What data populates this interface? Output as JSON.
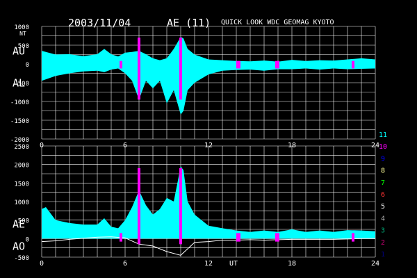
{
  "header": {
    "date": "2003/11/04",
    "index": "AE (11)",
    "source": "QUICK LOOK  WDC GEOMAG KYOTO"
  },
  "colors": {
    "background": "#000000",
    "grid": "#ffffff",
    "ae_fill": "#00ffff",
    "ao_line": "#ffffff",
    "highlight": "#ff00ff"
  },
  "chart_data": [
    {
      "type": "area",
      "panel": "top",
      "ylabel_upper": "AU",
      "ylabel_lower": "AL",
      "unit": "NT",
      "ylim": [
        -2000,
        1000
      ],
      "yticks": [
        1000,
        500,
        0,
        -500,
        -1000,
        -1500,
        -2000
      ],
      "xlim": [
        0,
        24
      ],
      "xticks": [
        0,
        6,
        12,
        18,
        24
      ],
      "au": {
        "x": [
          0,
          1,
          2,
          3,
          4,
          4.5,
          5,
          5.5,
          6,
          6.5,
          7,
          7.5,
          8,
          8.5,
          9,
          9.5,
          10,
          10.2,
          10.5,
          11,
          12,
          13,
          14,
          15,
          16,
          17,
          18,
          19,
          20,
          21,
          22,
          23,
          24
        ],
        "y": [
          350,
          250,
          260,
          210,
          260,
          400,
          260,
          200,
          300,
          320,
          350,
          260,
          150,
          100,
          150,
          400,
          720,
          680,
          400,
          250,
          120,
          100,
          80,
          70,
          90,
          60,
          110,
          80,
          100,
          90,
          120,
          150,
          120
        ]
      },
      "al": {
        "x": [
          0,
          1,
          2,
          3,
          4,
          4.5,
          5,
          5.5,
          6,
          6.5,
          7,
          7.5,
          8,
          8.5,
          9,
          9.5,
          10,
          10.2,
          10.5,
          11,
          12,
          13,
          14,
          15,
          16,
          17,
          18,
          19,
          20,
          21,
          22,
          23,
          24
        ],
        "y": [
          -450,
          -320,
          -250,
          -200,
          -180,
          -220,
          -150,
          -120,
          -250,
          -450,
          -950,
          -450,
          -650,
          -450,
          -1050,
          -700,
          -1350,
          -1250,
          -700,
          -500,
          -280,
          -180,
          -160,
          -150,
          -180,
          -140,
          -140,
          -120,
          -150,
          -120,
          -140,
          -130,
          -120
        ]
      }
    },
    {
      "type": "area",
      "panel": "bottom",
      "ylabel_upper": "AE",
      "ylabel_lower": "AO",
      "xlabel": "UT",
      "ylim": [
        -500,
        2500
      ],
      "yticks": [
        2500,
        2000,
        1500,
        1000,
        500,
        0,
        -500
      ],
      "xlim": [
        0,
        24
      ],
      "xticks": [
        0,
        6,
        12,
        18,
        24
      ],
      "ae": {
        "x": [
          0,
          0.3,
          1,
          2,
          3,
          4,
          4.5,
          5,
          5.5,
          6,
          6.5,
          7,
          7.5,
          8,
          8.5,
          9,
          9.5,
          10,
          10.2,
          10.5,
          11,
          12,
          13,
          14,
          15,
          16,
          17,
          18,
          19,
          20,
          21,
          22,
          23,
          24
        ],
        "y": [
          800,
          850,
          500,
          420,
          380,
          380,
          550,
          320,
          280,
          500,
          850,
          1300,
          900,
          650,
          800,
          1100,
          1000,
          1950,
          1850,
          1000,
          650,
          350,
          280,
          220,
          180,
          220,
          180,
          250,
          180,
          220,
          180,
          230,
          220,
          200
        ]
      },
      "ao": {
        "x": [
          0,
          1,
          2,
          3,
          4,
          5,
          6,
          7,
          8,
          9,
          10,
          11,
          12,
          13,
          14,
          15,
          16,
          17,
          18,
          19,
          20,
          21,
          22,
          23,
          24
        ],
        "y": [
          -80,
          -60,
          -20,
          10,
          40,
          50,
          20,
          -150,
          -200,
          -350,
          -450,
          -100,
          -80,
          -40,
          -40,
          -30,
          -40,
          -30,
          -20,
          -20,
          -20,
          -20,
          -10,
          0,
          0
        ]
      },
      "highlight_intervals": [
        [
          5.6,
          5.8
        ],
        [
          6.9,
          7.1
        ],
        [
          9.9,
          10.1
        ],
        [
          14.0,
          14.3
        ],
        [
          16.8,
          17.1
        ],
        [
          22.3,
          22.5
        ]
      ]
    }
  ],
  "legend": {
    "entries": [
      {
        "label": "11",
        "color": "#00ffff"
      },
      {
        "label": "10",
        "color": "#ff00ff"
      },
      {
        "label": "9",
        "color": "#0000ff"
      },
      {
        "label": "8",
        "color": "#ffff99"
      },
      {
        "label": "7",
        "color": "#00ff00"
      },
      {
        "label": "6",
        "color": "#ff3333"
      },
      {
        "label": "5",
        "color": "#ffffff"
      },
      {
        "label": "4",
        "color": "#aaaaaa"
      },
      {
        "label": "3",
        "color": "#00aa77"
      },
      {
        "label": "2",
        "color": "#cc0077"
      },
      {
        "label": "1",
        "color": "#000088"
      }
    ]
  }
}
